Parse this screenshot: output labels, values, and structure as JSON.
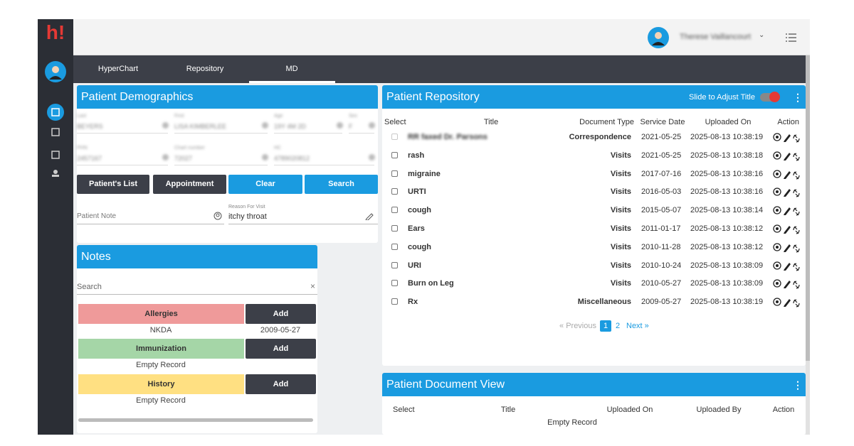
{
  "sidebar": {
    "logo": "h!"
  },
  "topbar": {
    "user": "Therese Vaillancourt"
  },
  "tabs": [
    "HyperChart",
    "Repository",
    "MD"
  ],
  "demographics": {
    "title": "Patient Demographics",
    "fields": [
      {
        "label": "Last",
        "value": "BEYERS"
      },
      {
        "label": "First",
        "value": "LISA KIMBERLEE"
      },
      {
        "label": "Age",
        "value": "19Y 4M 2D"
      },
      {
        "label": "Sex",
        "value": "F"
      },
      {
        "label": "PHN",
        "value": "2457167"
      },
      {
        "label": "Chart number",
        "value": "72027"
      },
      {
        "label": "HC",
        "value": "4789020812"
      }
    ],
    "buttons": [
      "Patient's List",
      "Appointment",
      "Clear",
      "Search"
    ],
    "patient_note": "Patient Note",
    "reason_label": "Reason For Visit",
    "reason": "itchy throat"
  },
  "notes": {
    "title": "Notes",
    "search": "Search",
    "sections": [
      {
        "name": "Allergies",
        "action": "Add",
        "rows": [
          [
            "NKDA",
            "2009-05-27"
          ]
        ]
      },
      {
        "name": "Immunization",
        "action": "Add",
        "rows": [
          [
            "Empty Record"
          ]
        ]
      },
      {
        "name": "History",
        "action": "Add",
        "rows": [
          [
            "Empty Record"
          ]
        ]
      }
    ]
  },
  "repository": {
    "title": "Patient Repository",
    "toggle_label": "Slide to Adjust Title",
    "columns": [
      "Select",
      "Title",
      "Document Type",
      "Service Date",
      "Uploaded On",
      "Action"
    ],
    "rows": [
      [
        "RR faxed Dr. Parsons",
        "Correspondence",
        "2021-05-25",
        "2025-08-13 10:38:19"
      ],
      [
        "rash",
        "Visits",
        "2021-05-25",
        "2025-08-13 10:38:18"
      ],
      [
        "migraine",
        "Visits",
        "2017-07-16",
        "2025-08-13 10:38:16"
      ],
      [
        "URTI",
        "Visits",
        "2016-05-03",
        "2025-08-13 10:38:16"
      ],
      [
        "cough",
        "Visits",
        "2015-05-07",
        "2025-08-13 10:38:14"
      ],
      [
        "Ears",
        "Visits",
        "2011-01-17",
        "2025-08-13 10:38:12"
      ],
      [
        "cough",
        "Visits",
        "2010-11-28",
        "2025-08-13 10:38:12"
      ],
      [
        "URI",
        "Visits",
        "2010-10-24",
        "2025-08-13 10:38:09"
      ],
      [
        "Burn on Leg",
        "Visits",
        "2010-05-27",
        "2025-08-13 10:38:09"
      ],
      [
        "Rx",
        "Miscellaneous",
        "2009-05-27",
        "2025-08-13 10:38:19"
      ]
    ],
    "pagination": {
      "previous": "« Previous",
      "pages": [
        "1",
        "2"
      ],
      "next": "Next »"
    }
  },
  "document_view": {
    "title": "Patient Document View",
    "columns": [
      "Select",
      "Title",
      "Uploaded On",
      "Uploaded By",
      "Action"
    ],
    "empty": "Empty Record"
  }
}
